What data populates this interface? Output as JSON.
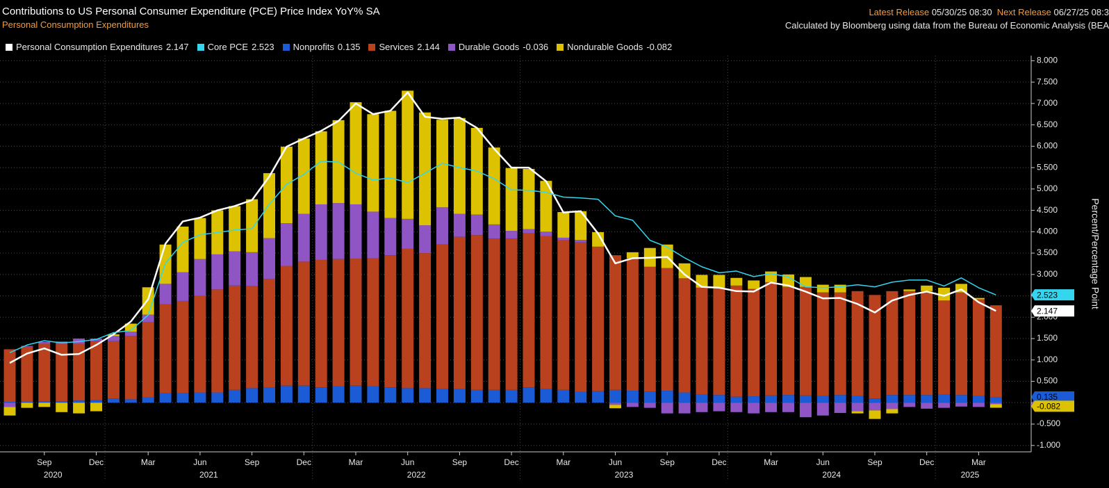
{
  "header": {
    "title": "Contributions to US Personal Consumer Expenditure (PCE) Price Index YoY% SA",
    "subtitle": "Personal Consumption Expenditures",
    "latest_release_label": "Latest Release",
    "latest_release": "05/30/25 08:30",
    "next_release_label": "Next Release",
    "next_release": "06/27/25 08:3",
    "source": "Calculated by Bloomberg using data from the Bureau of Economic Analysis (BEA"
  },
  "chart_data": {
    "type": "stacked_bar_line",
    "y_label": "Percent/Percentage Point",
    "categories": [
      null,
      null,
      "Sep",
      null,
      null,
      "Dec",
      null,
      null,
      "Mar",
      null,
      null,
      "Jun",
      null,
      null,
      "Sep",
      null,
      null,
      "Dec",
      null,
      null,
      "Mar",
      null,
      null,
      "Jun",
      null,
      null,
      "Sep",
      null,
      null,
      "Dec",
      null,
      null,
      "Mar",
      null,
      null,
      "Jun",
      null,
      null,
      "Sep",
      null,
      null,
      "Dec",
      null,
      null,
      "Mar",
      null,
      null,
      "Jun",
      null,
      null,
      "Sep",
      null,
      null,
      "Dec",
      null,
      null,
      "Mar",
      null
    ],
    "years": [
      "2020",
      "2021",
      "2022",
      "2023",
      "2024",
      "2025"
    ],
    "ylim": [
      -1.15,
      8.12
    ],
    "yticks": [
      {
        "value": -1,
        "label": "-1.000"
      },
      {
        "value": -0.5,
        "label": "-0.500"
      },
      {
        "value": 0,
        "label": "0.000"
      },
      {
        "value": 0.5,
        "label": "0.500"
      },
      {
        "value": 1,
        "label": "1.000"
      },
      {
        "value": 1.5,
        "label": "1.500"
      },
      {
        "value": 2,
        "label": "2.000"
      },
      {
        "value": 2.5,
        "label": "2.500"
      },
      {
        "value": 3,
        "label": "3.000"
      },
      {
        "value": 3.5,
        "label": "3.500"
      },
      {
        "value": 4,
        "label": "4.000"
      },
      {
        "value": 4.5,
        "label": "4.500"
      },
      {
        "value": 5,
        "label": "5.000"
      },
      {
        "value": 5.5,
        "label": "5.500"
      },
      {
        "value": 6,
        "label": "6.000"
      },
      {
        "value": 6.5,
        "label": "6.500"
      },
      {
        "value": 7,
        "label": "7.000"
      },
      {
        "value": 7.5,
        "label": "7.500"
      },
      {
        "value": 8,
        "label": "8.000"
      }
    ],
    "grid": true,
    "series": [
      {
        "name": "Personal Consumption Expenditures",
        "color": "#ffffff",
        "kind": "line",
        "values": [
          0.93,
          1.15,
          1.27,
          1.12,
          1.14,
          1.35,
          1.6,
          1.9,
          2.42,
          3.72,
          4.24,
          4.33,
          4.5,
          4.6,
          4.74,
          5.29,
          5.99,
          6.18,
          6.36,
          6.59,
          7.0,
          6.75,
          6.83,
          7.26,
          6.69,
          6.64,
          6.67,
          6.43,
          5.94,
          5.5,
          5.5,
          5.18,
          4.45,
          4.48,
          3.96,
          3.26,
          3.38,
          3.39,
          3.41,
          3.0,
          2.71,
          2.69,
          2.61,
          2.6,
          2.81,
          2.74,
          2.6,
          2.44,
          2.45,
          2.31,
          2.11,
          2.39,
          2.52,
          2.6,
          2.5,
          2.65,
          2.35,
          2.147
        ]
      },
      {
        "name": "Core PCE",
        "color": "#33d6ee",
        "kind": "line",
        "values": [
          1.17,
          1.35,
          1.45,
          1.4,
          1.43,
          1.48,
          1.64,
          1.69,
          2.05,
          3.26,
          3.75,
          3.93,
          3.98,
          4.04,
          4.07,
          4.64,
          5.11,
          5.34,
          5.65,
          5.63,
          5.37,
          5.21,
          5.26,
          5.15,
          5.37,
          5.6,
          5.5,
          5.42,
          5.24,
          4.98,
          4.97,
          4.92,
          4.81,
          4.79,
          4.76,
          4.37,
          4.27,
          3.8,
          3.64,
          3.39,
          3.18,
          3.04,
          3.08,
          2.95,
          3.02,
          2.94,
          2.71,
          2.69,
          2.71,
          2.76,
          2.71,
          2.82,
          2.87,
          2.87,
          2.73,
          2.92,
          2.69,
          2.523
        ]
      },
      {
        "name": "Nonprofits",
        "color": "#1c5bd6",
        "kind": "bar",
        "values": [
          0.02,
          0.02,
          0.03,
          0.03,
          0.05,
          0.06,
          0.1,
          0.08,
          0.12,
          0.22,
          0.22,
          0.24,
          0.24,
          0.3,
          0.34,
          0.35,
          0.4,
          0.4,
          0.36,
          0.38,
          0.4,
          0.38,
          0.36,
          0.34,
          0.34,
          0.33,
          0.32,
          0.3,
          0.3,
          0.3,
          0.36,
          0.32,
          0.3,
          0.25,
          0.27,
          0.3,
          0.28,
          0.26,
          0.28,
          0.24,
          0.2,
          0.18,
          0.14,
          0.15,
          0.17,
          0.18,
          0.17,
          0.16,
          0.18,
          0.16,
          0.1,
          0.18,
          0.18,
          0.18,
          0.2,
          0.18,
          0.16,
          0.135
        ]
      },
      {
        "name": "Services",
        "color": "#b9411d",
        "kind": "bar",
        "values": [
          1.23,
          1.29,
          1.35,
          1.35,
          1.33,
          1.38,
          1.34,
          1.48,
          1.76,
          2.08,
          2.16,
          2.26,
          2.41,
          2.44,
          2.39,
          2.55,
          2.8,
          2.9,
          2.98,
          2.98,
          2.97,
          3.0,
          3.09,
          3.26,
          3.16,
          3.37,
          3.56,
          3.62,
          3.54,
          3.54,
          3.6,
          3.58,
          3.5,
          3.5,
          3.38,
          3.15,
          3.1,
          2.92,
          2.87,
          2.67,
          2.49,
          2.51,
          2.6,
          2.51,
          2.65,
          2.53,
          2.54,
          2.42,
          2.4,
          2.45,
          2.42,
          2.43,
          2.43,
          2.43,
          2.19,
          2.4,
          2.26,
          2.144
        ]
      },
      {
        "name": "Durable Goods",
        "color": "#8f55c4",
        "kind": "bar",
        "values": [
          -0.1,
          0.02,
          0.04,
          0.05,
          0.12,
          0.06,
          0.12,
          0.1,
          0.18,
          0.48,
          0.67,
          0.86,
          0.82,
          0.8,
          0.79,
          0.95,
          1.0,
          1.12,
          1.3,
          1.31,
          1.27,
          1.09,
          0.87,
          0.7,
          0.65,
          0.87,
          0.54,
          0.48,
          0.33,
          0.18,
          0.1,
          0.1,
          0.06,
          0.06,
          0.0,
          -0.05,
          -0.1,
          -0.12,
          -0.25,
          -0.25,
          -0.22,
          -0.2,
          -0.22,
          -0.25,
          -0.22,
          -0.22,
          -0.34,
          -0.3,
          -0.24,
          -0.2,
          -0.18,
          -0.15,
          -0.1,
          -0.14,
          -0.12,
          -0.09,
          -0.1,
          -0.036
        ]
      },
      {
        "name": "Nondurable Goods",
        "color": "#dcc200",
        "kind": "bar",
        "values": [
          -0.2,
          -0.12,
          -0.1,
          -0.22,
          -0.25,
          -0.2,
          0.04,
          0.19,
          0.64,
          0.92,
          1.07,
          0.96,
          1.03,
          1.06,
          1.24,
          1.52,
          1.79,
          1.76,
          1.71,
          1.94,
          2.39,
          2.28,
          2.51,
          3.0,
          2.64,
          2.05,
          2.24,
          2.03,
          1.8,
          1.47,
          1.41,
          1.19,
          0.6,
          0.67,
          0.34,
          -0.08,
          0.14,
          0.44,
          0.55,
          0.35,
          0.3,
          0.3,
          0.18,
          0.2,
          0.25,
          0.29,
          0.23,
          0.18,
          0.18,
          -0.05,
          -0.2,
          -0.1,
          0.04,
          0.13,
          0.3,
          0.2,
          0.03,
          -0.082
        ]
      }
    ]
  }
}
